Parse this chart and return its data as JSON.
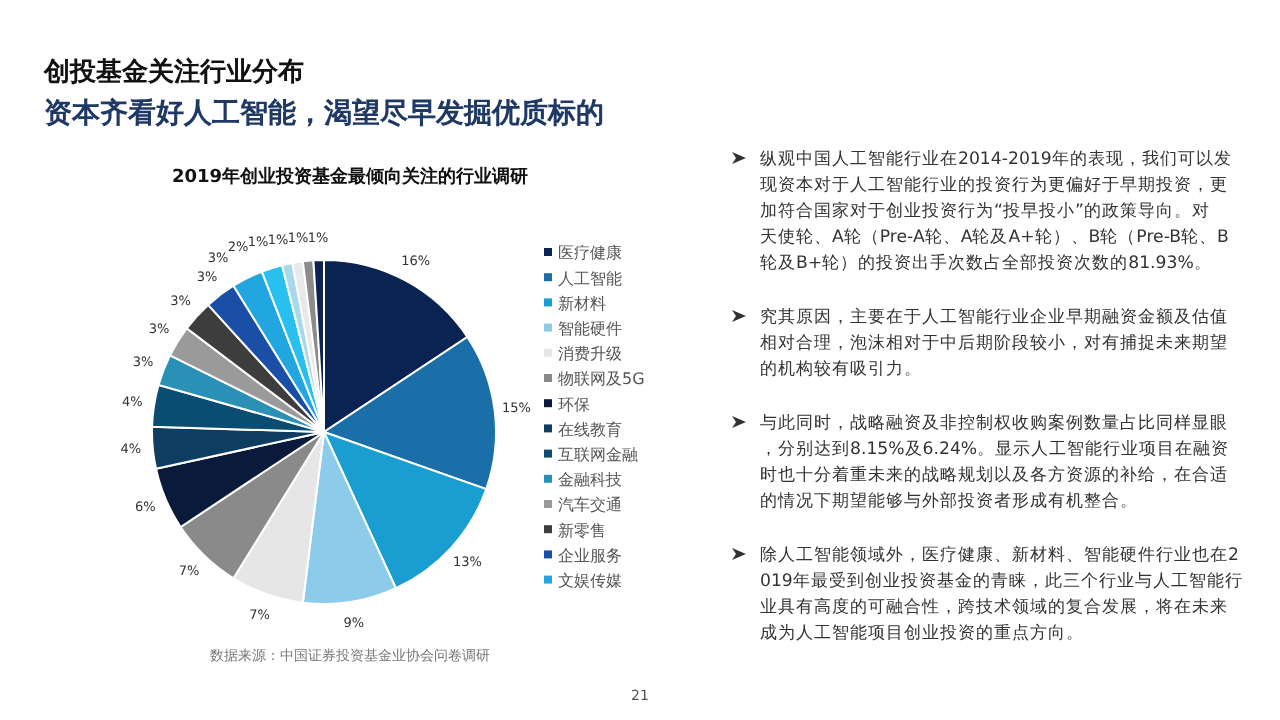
{
  "chart_data": {
    "type": "pie",
    "title": "2019年创业投资基金最倾向关注的行业调研",
    "categories": [
      "医疗健康",
      "人工智能",
      "新材料",
      "智能硬件",
      "消费升级",
      "物联网及5G",
      "环保",
      "在线教育",
      "互联网金融",
      "金融科技",
      "汽车交通",
      "新零售",
      "企业服务",
      "文娱传媒",
      null,
      null,
      null,
      null,
      null
    ],
    "values": [
      16,
      15,
      13,
      9,
      7,
      7,
      6,
      4,
      4,
      3,
      3,
      3,
      3,
      3,
      2,
      1,
      1,
      1,
      1
    ],
    "colors": [
      "#0b2352",
      "#1b6fa8",
      "#1a9dd0",
      "#8ccbea",
      "#e6e6e6",
      "#8a8a8a",
      "#0a1a3a",
      "#0e3d62",
      "#0b4c72",
      "#2a90b6",
      "#9a9a9a",
      "#3d3d3d",
      "#1a4fa8",
      "#22a6e0",
      "#29c0f0",
      "#a8d8ec",
      "#e9e9e9",
      "#8c8c8c",
      "#0b2352"
    ],
    "value_labels": [
      "16%",
      "15%",
      "13%",
      "9%",
      "7%",
      "7%",
      "6%",
      "4%",
      "4%",
      "3%",
      "3%",
      "3%",
      "3%",
      "3%",
      "2%",
      "1%",
      "1%",
      "1%",
      "1%"
    ],
    "legend": "right",
    "annotations": [
      "创投基金关注行业分布",
      "资本齐看好人工智能，渴望尽早发掘优质标的",
      "数据来源：中国证券投资基金业协会问卷调研",
      "纵观中国人工智能行业在2014-2019年的表现，我们可以发现资本对于人工智能行业的投资行为更偏好于早期投资，更加符合国家对于创业投资行为“投早投小”的政策导向。对天使轮、A轮（Pre-A轮、A轮及A+轮）、B轮（Pre-B轮、B轮及B+轮）的投资出手次数占全部投资次数的81.93%。",
      "究其原因，主要在于人工智能行业企业早期融资金额及估值相对合理，泡沫相对于中后期阶段较小，对有捕捉未来期望的机构较有吸引力。",
      "与此同时，战略融资及非控制权收购案例数量占比同样显眼，分别达到8.15%及6.24%。显示人工智能行业项目在融资时也十分着重未来的战略规划以及各方资源的补给，在合适的情况下期望能够与外部投资者形成有机整合。",
      "除人工智能领域外，医疗健康、新材料、智能硬件行业也在2019年最受到创业投资基金的青睐，此三个行业与人工智能行业具有高度的可融合性，跨技术领域的复合发展，将在未来成为人工智能项目创业投资的重点方向。",
      "21"
    ]
  }
}
